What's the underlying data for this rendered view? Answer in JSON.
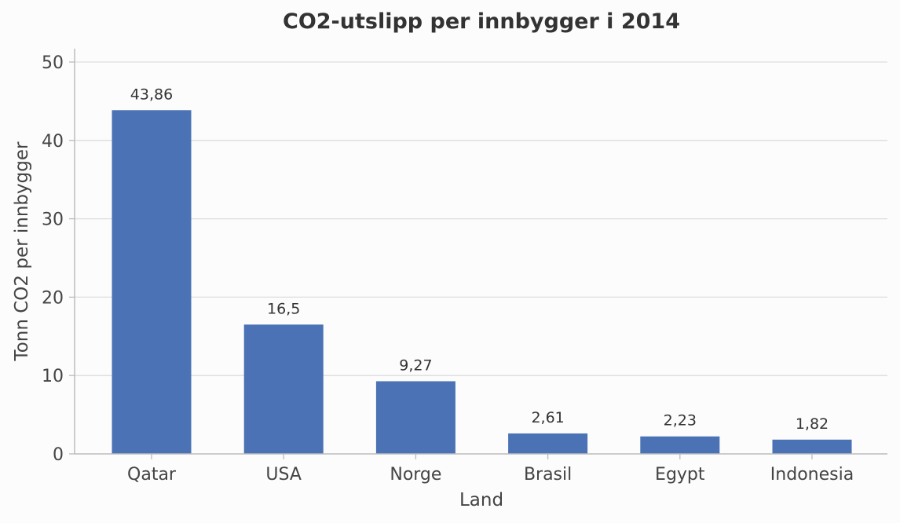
{
  "chart_data": {
    "type": "bar",
    "title": "CO2-utslipp per innbygger i 2014",
    "xlabel": "Land",
    "ylabel": "Tonn CO2 per innbygger",
    "categories": [
      "Qatar",
      "USA",
      "Norge",
      "Brasil",
      "Egypt",
      "Indonesia"
    ],
    "values": [
      43.86,
      16.5,
      9.27,
      2.61,
      2.23,
      1.82
    ],
    "value_labels": [
      "43,86",
      "16,5",
      "9,27",
      "2,61",
      "2,23",
      "1,82"
    ],
    "ylim": [
      0,
      50
    ],
    "yticks": [
      "0",
      "10",
      "20",
      "30",
      "40",
      "50"
    ],
    "grid": "horizontal",
    "bar_color": "#4a72b5",
    "grid_color": "#dddddd",
    "axis_color": "#bbbbbb"
  }
}
